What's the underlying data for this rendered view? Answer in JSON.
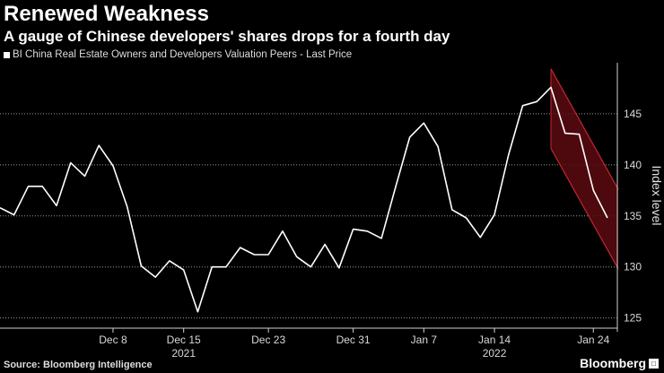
{
  "header": {
    "title": "Renewed Weakness",
    "subtitle": "A gauge of Chinese developers' shares drops for a fourth day"
  },
  "legend": {
    "label": "BI China Real Estate Owners and Developers Valuation Peers - Last Price"
  },
  "footer": {
    "source": "Source: Bloomberg Intelligence",
    "brand": "Bloomberg"
  },
  "colors": {
    "background": "#000000",
    "line": "#ffffff",
    "channel_fill": "#5a0a10",
    "channel_line": "#c02830"
  },
  "chart_data": {
    "type": "line",
    "ylabel": "Index level",
    "ylim": [
      124,
      150
    ],
    "yticks": [
      125,
      130,
      135,
      140,
      145
    ],
    "x_tick_labels": [
      "Dec 8",
      "Dec 15",
      "Dec 23",
      "Dec 31",
      "Jan 7",
      "Jan 14",
      "Jan 24"
    ],
    "x_tick_index": [
      8,
      13,
      19,
      25,
      30,
      35,
      42
    ],
    "year_labels": [
      {
        "label": "2021",
        "at_index": 13
      },
      {
        "label": "2022",
        "at_index": 35
      }
    ],
    "series": [
      {
        "name": "BI China Real Estate Owners and Developers Valuation Peers - Last Price",
        "values": [
          135.8,
          135.1,
          137.9,
          137.9,
          136.0,
          140.2,
          138.9,
          141.9,
          139.9,
          135.9,
          130.1,
          129.0,
          130.6,
          129.7,
          125.6,
          130.0,
          130.0,
          131.9,
          131.2,
          131.2,
          133.5,
          131.0,
          130.0,
          132.2,
          129.9,
          133.7,
          133.5,
          132.8,
          137.8,
          142.7,
          144.1,
          141.8,
          135.6,
          134.8,
          132.9,
          135.1,
          141.0,
          145.8,
          146.2,
          147.6,
          143.1,
          143.0,
          137.5,
          134.8
        ]
      }
    ],
    "annotations": [
      {
        "type": "downward channel",
        "start_index": 39,
        "end_index": 43,
        "upper": [
          149.4,
          137.6
        ],
        "lower": [
          141.6,
          129.8
        ]
      }
    ]
  }
}
